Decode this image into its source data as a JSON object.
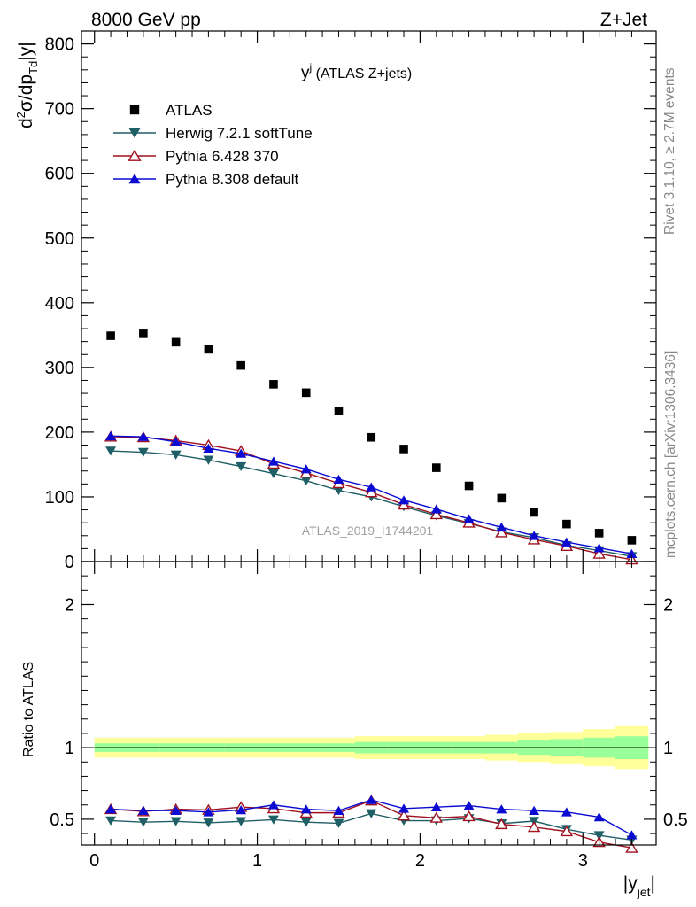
{
  "header": {
    "left": "8000 GeV pp",
    "right": "Z+Jet"
  },
  "side_labels": {
    "rivet": "Rivet 3.1.10, ≥ 2.7M events",
    "mcplots": "mcplots.cern.ch [arXiv:1306.3436]"
  },
  "chart_data": [
    {
      "type": "scatter",
      "title_main": "y",
      "title_sup": "j",
      "title_rest": " (ATLAS Z+jets)",
      "watermark": "ATLAS_2019_I1744201",
      "ylabel": {
        "p1": "d",
        "p1sup": "2",
        "p2": "σ/dp",
        "p2sub": "Td",
        "p3": "|y|"
      },
      "ylim": [
        0,
        820
      ],
      "xlim": [
        -0.08,
        3.45
      ],
      "yticks": [
        "0",
        "100",
        "200",
        "300",
        "400",
        "500",
        "600",
        "700",
        "800"
      ],
      "legend_position": "top-left",
      "x": [
        0.1,
        0.3,
        0.5,
        0.7,
        0.9,
        1.1,
        1.3,
        1.5,
        1.7,
        1.9,
        2.1,
        2.3,
        2.5,
        2.7,
        2.9,
        3.1,
        3.3
      ],
      "series": [
        {
          "name": "ATLAS",
          "color": "#000000",
          "marker": "square",
          "values": [
            349,
            352,
            339,
            328,
            303,
            274,
            261,
            233,
            192,
            174,
            145,
            117,
            98,
            76,
            58,
            44,
            33
          ]
        },
        {
          "name": "Herwig 7.2.1 softTune",
          "color": "#1f5f66",
          "marker": "triangle-down",
          "values": [
            171,
            169,
            165,
            157,
            147,
            136,
            125,
            110,
            100,
            85,
            71,
            59,
            46,
            37,
            25,
            17,
            8
          ]
        },
        {
          "name": "Pythia 6.428 370",
          "color": "#a0101e",
          "marker": "triangle-up-open",
          "values": [
            193,
            192,
            187,
            180,
            171,
            151,
            137,
            121,
            107,
            88,
            73,
            60,
            45,
            34,
            24,
            12,
            3
          ]
        },
        {
          "name": "Pythia 8.308 default",
          "color": "#0a0ad2",
          "marker": "triangle-up",
          "values": [
            194,
            193,
            185,
            175,
            167,
            155,
            143,
            127,
            115,
            95,
            81,
            66,
            53,
            40,
            30,
            21,
            12
          ]
        }
      ]
    },
    {
      "type": "line",
      "ylabel": "Ratio to ATLAS",
      "xlabel": "|y",
      "xlabel_sub": "jet",
      "xlabel_end": "|",
      "ylim": [
        0.32,
        2.3
      ],
      "xticks": [
        "0",
        "1",
        "2",
        "3"
      ],
      "yticks": [
        "0.5",
        "1",
        "2"
      ],
      "band_colors": {
        "outer": "#ffff99",
        "inner": "#99ff99"
      },
      "bands": {
        "edges": [
          0.0,
          0.2,
          0.4,
          0.6,
          0.8,
          1.0,
          1.2,
          1.4,
          1.6,
          1.8,
          2.0,
          2.2,
          2.4,
          2.6,
          2.8,
          3.0,
          3.2,
          3.4
        ],
        "outer_half_width": [
          0.07,
          0.07,
          0.07,
          0.07,
          0.07,
          0.07,
          0.07,
          0.07,
          0.08,
          0.08,
          0.08,
          0.08,
          0.09,
          0.1,
          0.11,
          0.13,
          0.15
        ],
        "inner_half_width": [
          0.03,
          0.03,
          0.03,
          0.03,
          0.03,
          0.03,
          0.03,
          0.03,
          0.04,
          0.04,
          0.04,
          0.04,
          0.04,
          0.05,
          0.06,
          0.07,
          0.08
        ]
      },
      "x": [
        0.1,
        0.3,
        0.5,
        0.7,
        0.9,
        1.1,
        1.3,
        1.5,
        1.7,
        1.9,
        2.1,
        2.3,
        2.5,
        2.7,
        2.9,
        3.1,
        3.3
      ],
      "series": [
        {
          "name": "Herwig 7.2.1 softTune",
          "color": "#1f5f66",
          "marker": "triangle-down",
          "values": [
            0.49,
            0.48,
            0.485,
            0.475,
            0.485,
            0.497,
            0.48,
            0.472,
            0.54,
            0.49,
            0.49,
            0.505,
            0.47,
            0.487,
            0.43,
            0.387,
            0.355
          ]
        },
        {
          "name": "Pythia 6.428 370",
          "color": "#a0101e",
          "marker": "triangle-up-open",
          "values": [
            0.57,
            0.555,
            0.57,
            0.565,
            0.585,
            0.575,
            0.545,
            0.545,
            0.63,
            0.525,
            0.51,
            0.52,
            0.465,
            0.445,
            0.415,
            0.34,
            0.3
          ]
        },
        {
          "name": "Pythia 8.308 default",
          "color": "#0a0ad2",
          "marker": "triangle-up",
          "values": [
            0.57,
            0.56,
            0.56,
            0.55,
            0.565,
            0.6,
            0.57,
            0.56,
            0.635,
            0.575,
            0.585,
            0.595,
            0.57,
            0.56,
            0.55,
            0.515,
            0.39
          ]
        }
      ]
    }
  ]
}
